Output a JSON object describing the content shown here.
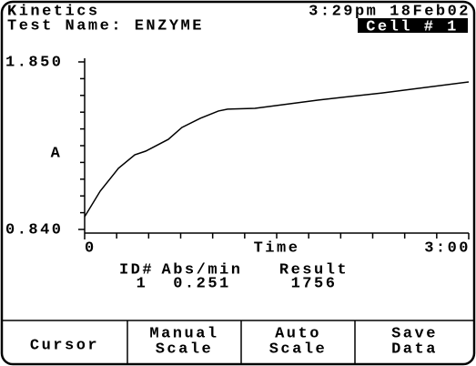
{
  "header": {
    "mode": "Kinetics",
    "test_name": "Test Name: ENZYME",
    "datetime": "3:29pm 18Feb02",
    "cell": "Cell # 1"
  },
  "chart_data": {
    "type": "line",
    "ylabel": "A",
    "xlabel": "Time",
    "color": "#000000",
    "x": [
      0,
      7.3,
      15.8,
      23.5,
      28.6,
      39.2,
      45.6,
      54.2,
      62.7,
      67,
      79.8,
      109.6,
      139.4,
      180
    ],
    "values": [
      0.917,
      1.071,
      1.208,
      1.29,
      1.312,
      1.383,
      1.455,
      1.51,
      1.554,
      1.565,
      1.57,
      1.62,
      1.663,
      1.729
    ],
    "xlim": [
      0,
      180
    ],
    "xticks": [
      0,
      {
        "value": 180,
        "label": "3:00"
      }
    ],
    "xminorticks": [
      15,
      30,
      45,
      60,
      75,
      90,
      105,
      120,
      135,
      150,
      165
    ],
    "ylim": [
      0.84,
      1.85
    ],
    "yticks": [
      {
        "value": 0.84,
        "label": "0.840"
      },
      {
        "value": 1.85,
        "label": "1.850"
      }
    ],
    "yminorticks": [
      0.941,
      1.042,
      1.143,
      1.244,
      1.345,
      1.446,
      1.547,
      1.648,
      1.749
    ]
  },
  "results": {
    "headers": [
      "ID#",
      "Abs/min",
      "Result"
    ],
    "values": [
      "1",
      "0.251",
      "1756"
    ]
  },
  "buttons": [
    [
      "Cursor"
    ],
    [
      "Manual",
      "Scale"
    ],
    [
      "Auto",
      "Scale"
    ],
    [
      "Save",
      "Data"
    ]
  ]
}
